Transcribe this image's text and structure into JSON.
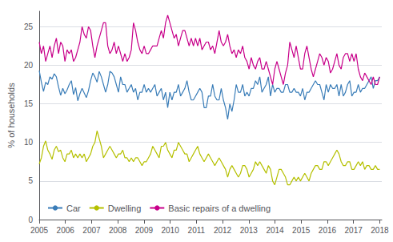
{
  "chart_data": {
    "type": "line",
    "ylabel": "% of households",
    "x": [
      2005.0,
      2005.0818,
      2005.1635,
      2005.2453,
      2005.327,
      2005.4088,
      2005.4906,
      2005.5723,
      2005.6541,
      2005.7358,
      2005.8176,
      2005.8994,
      2005.9811,
      2006.0629,
      2006.1447,
      2006.2264,
      2006.3082,
      2006.3899,
      2006.4717,
      2006.5535,
      2006.6352,
      2006.717,
      2006.7987,
      2006.8805,
      2006.9623,
      2007.044,
      2007.1258,
      2007.2075,
      2007.2893,
      2007.3711,
      2007.4528,
      2007.5346,
      2007.6164,
      2007.6981,
      2007.7799,
      2007.8616,
      2007.9434,
      2008.0252,
      2008.1069,
      2008.1887,
      2008.2704,
      2008.3522,
      2008.434,
      2008.5157,
      2008.5975,
      2008.6792,
      2008.761,
      2008.8428,
      2008.9245,
      2009.0063,
      2009.0881,
      2009.1698,
      2009.2516,
      2009.3333,
      2009.4151,
      2009.4969,
      2009.5786,
      2009.6604,
      2009.7421,
      2009.8239,
      2009.9057,
      2009.9874,
      2010.0692,
      2010.1509,
      2010.2327,
      2010.3145,
      2010.3962,
      2010.478,
      2010.5597,
      2010.6415,
      2010.7233,
      2010.805,
      2010.8868,
      2010.9686,
      2011.0503,
      2011.1321,
      2011.2138,
      2011.2956,
      2011.3774,
      2011.4591,
      2011.5409,
      2011.6226,
      2011.7044,
      2011.7862,
      2011.8679,
      2011.9497,
      2012.0314,
      2012.1132,
      2012.195,
      2012.2767,
      2012.3585,
      2012.4403,
      2012.522,
      2012.6038,
      2012.6855,
      2012.7673,
      2012.8491,
      2012.9308,
      2013.0126,
      2013.0943,
      2013.1761,
      2013.2579,
      2013.3396,
      2013.4214,
      2013.5031,
      2013.5849,
      2013.6667,
      2013.7484,
      2013.8302,
      2013.9119,
      2013.9937,
      2014.0755,
      2014.1572,
      2014.239,
      2014.3208,
      2014.4025,
      2014.4843,
      2014.566,
      2014.6478,
      2014.7296,
      2014.8113,
      2014.8931,
      2014.9748,
      2015.0566,
      2015.1384,
      2015.2201,
      2015.3019,
      2015.3836,
      2015.4654,
      2015.5472,
      2015.6289,
      2015.7107,
      2015.7925,
      2015.8742,
      2015.956,
      2016.0377,
      2016.1195,
      2016.2013,
      2016.283,
      2016.3648,
      2016.4465,
      2016.5283,
      2016.6101,
      2016.6918,
      2016.7736,
      2016.8553,
      2016.9371,
      2017.0189,
      2017.1006,
      2017.1824,
      2017.2642,
      2017.3459,
      2017.4277,
      2017.5094,
      2017.5912,
      2017.673,
      2017.7547,
      2017.8365,
      2017.9182,
      2018.0
    ],
    "xlim": [
      2005.0,
      2018.08
    ],
    "xticks": [
      2005,
      2006,
      2007,
      2008,
      2009,
      2010,
      2011,
      2012,
      2013,
      2014,
      2015,
      2016,
      2017,
      2018
    ],
    "ylim": [
      0,
      27
    ],
    "yticks": [
      0,
      5,
      10,
      15,
      20,
      25
    ],
    "grid": true,
    "legend": "lower left",
    "series": [
      {
        "name": "Car",
        "color": "#3a7db8",
        "values": [
          19.3,
          17.8,
          16.6,
          17.8,
          17.5,
          18.5,
          18.2,
          18.9,
          18.5,
          17.2,
          16.1,
          17.0,
          16.3,
          16.8,
          17.5,
          18.0,
          16.2,
          17.1,
          15.4,
          16.3,
          17.0,
          16.4,
          15.8,
          16.7,
          18.0,
          19.0,
          18.5,
          17.8,
          19.2,
          18.5,
          17.5,
          16.5,
          17.5,
          19.2,
          19.0,
          18.5,
          17.5,
          16.5,
          18.5,
          17.5,
          17.5,
          16.5,
          17.0,
          17.5,
          16.5,
          17.0,
          15.5,
          16.5,
          16.5,
          17.5,
          16.5,
          17.0,
          16.5,
          17.0,
          17.5,
          16.0,
          16.5,
          17.0,
          15.5,
          16.5,
          14.5,
          16.5,
          15.5,
          16.5,
          16.5,
          17.5,
          16.0,
          16.5,
          17.0,
          18.0,
          16.5,
          15.5,
          15.5,
          16.0,
          16.5,
          17.0,
          16.5,
          14.5,
          14.5,
          16.0,
          16.0,
          17.5,
          16.0,
          15.5,
          15.5,
          17.0,
          15.5,
          14.5,
          13.0,
          15.0,
          14.0,
          15.5,
          17.5,
          16.5,
          16.5,
          17.5,
          16.0,
          16.5,
          16.0,
          17.0,
          17.0,
          18.0,
          17.5,
          18.5,
          16.5,
          17.0,
          17.5,
          18.5,
          16.0,
          17.5,
          16.5,
          17.0,
          17.0,
          16.5,
          16.5,
          17.5,
          17.5,
          16.5,
          16.5,
          17.0,
          16.5,
          16.5,
          16.0,
          17.0,
          15.5,
          16.5,
          16.5,
          17.0,
          17.5,
          18.0,
          17.5,
          17.5,
          16.5,
          15.5,
          17.5,
          16.5,
          17.5,
          17.0,
          17.0,
          17.5,
          16.0,
          17.5,
          16.0,
          16.5,
          17.5,
          18.0,
          16.0,
          16.5,
          16.5,
          17.5,
          16.5,
          17.0,
          17.0,
          17.5,
          18.0,
          18.5,
          17.0,
          18.0,
          18.0,
          18.5
        ]
      },
      {
        "name": "Dwelling",
        "color": "#b5c000",
        "values": [
          7.2,
          8.0,
          9.5,
          10.2,
          9.0,
          8.5,
          7.8,
          9.0,
          9.5,
          8.8,
          9.0,
          8.0,
          7.5,
          8.5,
          8.5,
          9.0,
          8.0,
          8.5,
          8.0,
          8.5,
          8.0,
          8.5,
          7.5,
          8.0,
          8.5,
          9.5,
          10.0,
          11.5,
          10.5,
          9.5,
          8.0,
          8.5,
          9.0,
          9.5,
          9.0,
          8.5,
          8.0,
          8.5,
          8.5,
          9.0,
          8.0,
          8.0,
          7.5,
          8.0,
          7.5,
          8.0,
          8.0,
          7.5,
          7.0,
          7.5,
          7.5,
          8.0,
          8.5,
          9.5,
          9.0,
          8.5,
          8.0,
          9.5,
          9.5,
          10.0,
          9.0,
          8.5,
          8.0,
          9.0,
          9.0,
          10.0,
          9.5,
          9.0,
          8.5,
          8.5,
          7.5,
          8.0,
          8.5,
          9.0,
          9.5,
          8.5,
          8.0,
          7.5,
          8.0,
          8.5,
          8.0,
          7.5,
          7.0,
          7.5,
          8.0,
          7.5,
          7.0,
          6.5,
          5.5,
          6.5,
          7.0,
          6.5,
          6.0,
          5.5,
          6.0,
          7.0,
          7.0,
          6.5,
          5.5,
          6.0,
          6.5,
          7.5,
          7.0,
          7.5,
          7.0,
          6.5,
          6.0,
          7.0,
          6.5,
          5.0,
          4.5,
          5.5,
          6.5,
          6.5,
          6.0,
          5.5,
          4.5,
          4.5,
          5.0,
          5.5,
          5.0,
          5.5,
          5.0,
          5.5,
          6.0,
          5.5,
          5.0,
          6.0,
          6.5,
          7.0,
          7.0,
          6.5,
          6.5,
          7.5,
          7.5,
          7.0,
          7.5,
          8.0,
          8.5,
          9.0,
          8.5,
          7.5,
          7.0,
          7.0,
          7.5,
          7.5,
          6.5,
          6.5,
          7.0,
          7.5,
          7.0,
          7.5,
          6.5,
          7.0,
          7.0,
          6.5,
          6.5,
          7.0,
          6.5,
          6.5
        ]
      },
      {
        "name": "Basic repairs of a dwelling",
        "color": "#c8008a",
        "values": [
          23.0,
          21.5,
          22.5,
          20.5,
          21.5,
          22.5,
          21.0,
          22.5,
          23.5,
          21.5,
          23.0,
          22.5,
          20.5,
          22.0,
          21.5,
          22.0,
          20.5,
          21.0,
          22.0,
          23.0,
          25.0,
          24.0,
          23.5,
          25.0,
          24.5,
          22.5,
          21.0,
          22.5,
          23.5,
          24.5,
          25.5,
          25.5,
          22.5,
          21.5,
          22.0,
          23.0,
          21.5,
          22.5,
          21.5,
          20.5,
          21.5,
          20.5,
          21.0,
          22.0,
          25.5,
          24.5,
          23.0,
          22.0,
          21.5,
          22.5,
          21.5,
          21.5,
          22.0,
          22.5,
          22.5,
          22.5,
          23.5,
          24.5,
          23.5,
          25.5,
          26.5,
          25.5,
          24.5,
          23.5,
          24.0,
          22.5,
          23.5,
          24.5,
          24.5,
          23.5,
          22.5,
          23.5,
          22.5,
          23.5,
          22.5,
          23.5,
          22.0,
          22.5,
          23.0,
          23.0,
          22.0,
          22.5,
          21.5,
          23.0,
          24.5,
          23.0,
          22.5,
          23.0,
          24.0,
          22.5,
          21.5,
          22.0,
          21.0,
          22.0,
          21.5,
          22.5,
          21.0,
          20.5,
          19.5,
          21.0,
          20.0,
          19.5,
          20.5,
          21.0,
          19.5,
          19.5,
          20.5,
          19.5,
          18.5,
          17.5,
          19.5,
          20.5,
          19.5,
          18.5,
          17.5,
          19.0,
          20.0,
          23.0,
          22.0,
          21.0,
          22.5,
          21.0,
          19.5,
          19.5,
          21.5,
          22.5,
          21.0,
          19.5,
          18.5,
          19.5,
          20.5,
          21.5,
          21.0,
          20.0,
          21.0,
          20.5,
          19.0,
          19.5,
          20.5,
          21.5,
          20.0,
          19.5,
          21.0,
          21.5,
          21.5,
          20.5,
          21.5,
          20.5,
          21.5,
          19.5,
          18.5,
          18.0,
          19.0,
          18.5,
          18.0,
          17.5,
          18.5,
          17.5,
          17.5,
          18.5
        ]
      }
    ]
  }
}
